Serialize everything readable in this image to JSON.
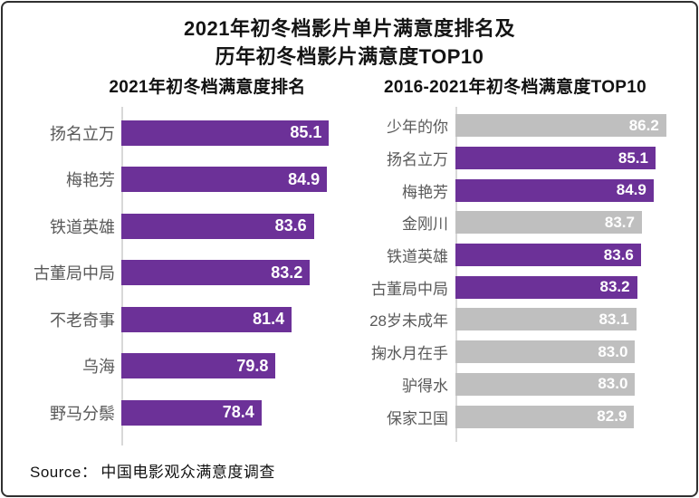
{
  "page": {
    "title_line1": "2021年初冬档影片单片满意度排名及",
    "title_line2": "历年初冬档影片满意度TOP10",
    "source_label": "Source：",
    "source_text": "中国电影观众满意度调查"
  },
  "colors": {
    "purple": "#6C3198",
    "gray": "#BFBFBF",
    "axis_line": "#D8D8D8",
    "category_label": "#595959",
    "value_label": "#FFFFFF",
    "title_text": "#141414",
    "border": "#303030"
  },
  "chart_data": [
    {
      "type": "bar",
      "orientation": "horizontal",
      "title": "2021年初冬档满意度排名",
      "categories": [
        "扬名立万",
        "梅艳芳",
        "铁道英雄",
        "古董局中局",
        "不老奇事",
        "乌海",
        "野马分鬃"
      ],
      "values": [
        85.1,
        84.9,
        83.6,
        83.2,
        81.4,
        79.8,
        78.4
      ],
      "value_labels": [
        "85.1",
        "84.9",
        "83.6",
        "83.2",
        "81.4",
        "79.8",
        "78.4"
      ],
      "bar_colors": [
        "purple",
        "purple",
        "purple",
        "purple",
        "purple",
        "purple",
        "purple"
      ],
      "xlim": [
        64.5,
        86.5
      ],
      "grid": false,
      "legend": "none",
      "data_label_position": "inside-end"
    },
    {
      "type": "bar",
      "orientation": "horizontal",
      "title": "2016-2021年初冬档满意度TOP10",
      "categories": [
        "少年的你",
        "扬名立万",
        "梅艳芳",
        "金刚川",
        "铁道英雄",
        "古董局中局",
        "28岁未成年",
        "掬水月在手",
        "驴得水",
        "保家卫国"
      ],
      "values": [
        86.2,
        85.1,
        84.9,
        83.7,
        83.6,
        83.2,
        83.1,
        83.0,
        83.0,
        82.9
      ],
      "value_labels": [
        "86.2",
        "85.1",
        "84.9",
        "83.7",
        "83.6",
        "83.2",
        "83.1",
        "83.0",
        "83.0",
        "82.9"
      ],
      "bar_colors": [
        "gray",
        "purple",
        "purple",
        "gray",
        "purple",
        "purple",
        "gray",
        "gray",
        "gray",
        "gray"
      ],
      "xlim": [
        64.5,
        86.5
      ],
      "grid": false,
      "legend": "none",
      "data_label_position": "inside-end"
    }
  ]
}
